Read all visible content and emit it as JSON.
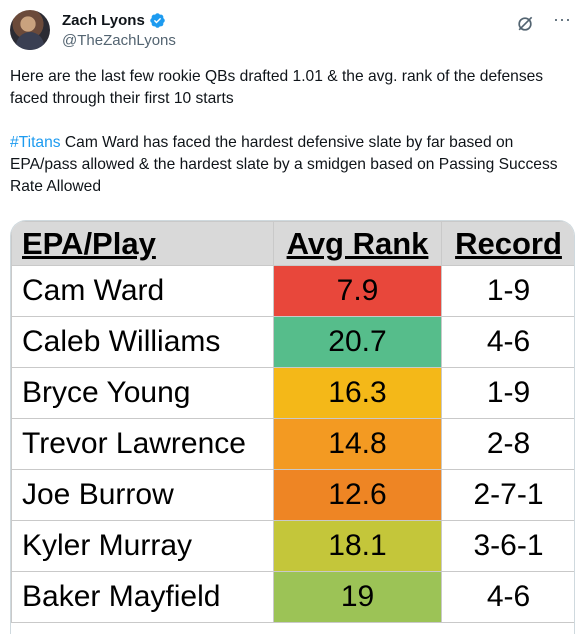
{
  "tweet": {
    "author_name": "Zach Lyons",
    "author_handle": "@TheZachLyons",
    "line1": "Here are the last few rookie QBs drafted 1.01 & the avg. rank of the defenses faced through their first 10 starts",
    "hashtag": "#Titans",
    "line2_rest": " Cam Ward has faced the hardest defensive slate by far based on EPA/pass allowed & the hardest slate by a smidgen based on Passing Success Rate Allowed",
    "more_glyph": "···"
  },
  "colors": {
    "verified": "#1d9bf0",
    "hashtag": "#1d9bf0",
    "header_bg": "#d9d9d9"
  },
  "icons": {
    "verified": "verified-badge-icon",
    "grok": "grok-icon",
    "more": "more-options-icon"
  },
  "table": {
    "headers": [
      "EPA/Play",
      "Avg Rank",
      "Record"
    ],
    "rows": [
      {
        "name": "Cam Ward",
        "rank": "7.9",
        "record": "1-9",
        "color": "#e8473b"
      },
      {
        "name": "Caleb Williams",
        "rank": "20.7",
        "record": "4-6",
        "color": "#56bd8b"
      },
      {
        "name": "Bryce Young",
        "rank": "16.3",
        "record": "1-9",
        "color": "#f4b818"
      },
      {
        "name": "Trevor Lawrence",
        "rank": "14.8",
        "record": "2-8",
        "color": "#f39a22"
      },
      {
        "name": "Joe Burrow",
        "rank": "12.6",
        "record": "2-7-1",
        "color": "#ee8524"
      },
      {
        "name": "Kyler Murray",
        "rank": "18.1",
        "record": "3-6-1",
        "color": "#c4c63a"
      },
      {
        "name": "Baker Mayfield",
        "rank": "19",
        "record": "4-6",
        "color": "#9cc356"
      }
    ]
  }
}
